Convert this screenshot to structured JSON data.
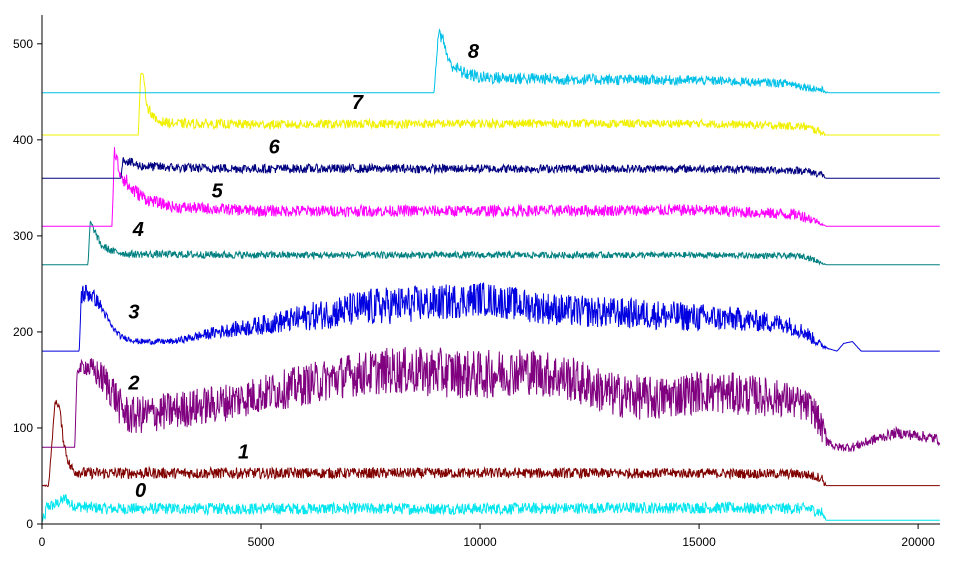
{
  "chart_data": {
    "type": "line",
    "xlim": [
      0,
      20500
    ],
    "ylim": [
      0,
      530
    ],
    "x_ticks": [
      0,
      5000,
      10000,
      15000,
      20000
    ],
    "y_ticks": [
      0,
      100,
      200,
      300,
      400,
      500
    ],
    "x_tick_labels": [
      "0",
      "5000",
      "10000",
      "15000",
      "20000"
    ],
    "y_tick_labels": [
      "0",
      "100",
      "200",
      "300",
      "400",
      "500"
    ],
    "grid": false,
    "legend": "none",
    "series": [
      {
        "name": "0",
        "color": "#00e5ee",
        "points": [
          [
            0,
            5
          ],
          [
            60,
            5
          ],
          [
            100,
            18
          ],
          [
            300,
            20
          ],
          [
            550,
            27
          ],
          [
            650,
            20
          ],
          [
            900,
            18
          ],
          [
            1500,
            16
          ],
          [
            5000,
            16
          ],
          [
            10000,
            16
          ],
          [
            15000,
            17
          ],
          [
            17500,
            16
          ],
          [
            17800,
            12
          ],
          [
            17900,
            4
          ],
          [
            20500,
            4
          ]
        ],
        "noise": [
          [
            0,
            6
          ],
          [
            17800,
            6
          ],
          [
            17900,
            0
          ]
        ],
        "label": {
          "text": "0",
          "x": 2250,
          "y": 28
        }
      },
      {
        "name": "1",
        "color": "#800000",
        "points": [
          [
            0,
            40
          ],
          [
            150,
            40
          ],
          [
            220,
            80
          ],
          [
            300,
            128
          ],
          [
            400,
            122
          ],
          [
            480,
            90
          ],
          [
            560,
            72
          ],
          [
            640,
            60
          ],
          [
            750,
            55
          ],
          [
            1000,
            53
          ],
          [
            5000,
            53
          ],
          [
            10000,
            53
          ],
          [
            15000,
            53
          ],
          [
            17400,
            52
          ],
          [
            17800,
            48
          ],
          [
            17900,
            40
          ],
          [
            20500,
            40
          ]
        ],
        "noise": [
          [
            0,
            0
          ],
          [
            650,
            6
          ],
          [
            17850,
            5
          ],
          [
            17900,
            0
          ]
        ],
        "label": {
          "text": "1",
          "x": 4600,
          "y": 68
        }
      },
      {
        "name": "2",
        "color": "#800080",
        "points": [
          [
            0,
            80
          ],
          [
            750,
            80
          ],
          [
            800,
            160
          ],
          [
            1000,
            165
          ],
          [
            1300,
            155
          ],
          [
            1600,
            140
          ],
          [
            1800,
            120
          ],
          [
            2000,
            112
          ],
          [
            2500,
            115
          ],
          [
            3000,
            118
          ],
          [
            4000,
            125
          ],
          [
            5000,
            135
          ],
          [
            6000,
            145
          ],
          [
            7000,
            155
          ],
          [
            8000,
            160
          ],
          [
            9000,
            158
          ],
          [
            10000,
            155
          ],
          [
            11000,
            160
          ],
          [
            12000,
            152
          ],
          [
            13000,
            135
          ],
          [
            14000,
            130
          ],
          [
            15000,
            138
          ],
          [
            16000,
            135
          ],
          [
            17000,
            130
          ],
          [
            17600,
            120
          ],
          [
            17900,
            90
          ],
          [
            18100,
            80
          ],
          [
            18500,
            80
          ],
          [
            19000,
            88
          ],
          [
            19500,
            95
          ],
          [
            20000,
            92
          ],
          [
            20500,
            88
          ]
        ],
        "noise": [
          [
            0,
            0
          ],
          [
            750,
            0
          ],
          [
            900,
            8
          ],
          [
            1500,
            20
          ],
          [
            5000,
            20
          ],
          [
            9000,
            26
          ],
          [
            16000,
            22
          ],
          [
            17800,
            16
          ],
          [
            18000,
            4
          ],
          [
            18500,
            5
          ],
          [
            20500,
            6
          ]
        ],
        "label": {
          "text": "2",
          "x": 2100,
          "y": 140
        }
      },
      {
        "name": "3",
        "color": "#0000e0",
        "points": [
          [
            0,
            180
          ],
          [
            850,
            180
          ],
          [
            900,
            240
          ],
          [
            1100,
            240
          ],
          [
            1300,
            230
          ],
          [
            1600,
            205
          ],
          [
            1800,
            195
          ],
          [
            2200,
            190
          ],
          [
            3000,
            190
          ],
          [
            3500,
            195
          ],
          [
            4000,
            200
          ],
          [
            5000,
            207
          ],
          [
            6000,
            215
          ],
          [
            7000,
            223
          ],
          [
            8000,
            228
          ],
          [
            9000,
            230
          ],
          [
            10000,
            235
          ],
          [
            11000,
            228
          ],
          [
            12000,
            222
          ],
          [
            13000,
            220
          ],
          [
            14000,
            218
          ],
          [
            15000,
            215
          ],
          [
            16000,
            213
          ],
          [
            17000,
            208
          ],
          [
            17400,
            200
          ],
          [
            17800,
            186
          ],
          [
            18000,
            182
          ],
          [
            18150,
            180
          ],
          [
            18300,
            188
          ],
          [
            18500,
            190
          ],
          [
            18700,
            180
          ],
          [
            20500,
            180
          ]
        ],
        "noise": [
          [
            0,
            0
          ],
          [
            850,
            0
          ],
          [
            900,
            12
          ],
          [
            1600,
            3
          ],
          [
            3000,
            3
          ],
          [
            5000,
            10
          ],
          [
            7500,
            20
          ],
          [
            10000,
            18
          ],
          [
            15000,
            15
          ],
          [
            17500,
            8
          ],
          [
            18000,
            0
          ],
          [
            20500,
            0
          ]
        ],
        "label": {
          "text": "3",
          "x": 2100,
          "y": 214
        }
      },
      {
        "name": "4",
        "color": "#008080",
        "points": [
          [
            0,
            270
          ],
          [
            1050,
            270
          ],
          [
            1100,
            315
          ],
          [
            1200,
            305
          ],
          [
            1350,
            290
          ],
          [
            1600,
            284
          ],
          [
            2000,
            281
          ],
          [
            5000,
            280
          ],
          [
            10000,
            280
          ],
          [
            15000,
            280
          ],
          [
            17400,
            279
          ],
          [
            17800,
            272
          ],
          [
            17900,
            270
          ],
          [
            20500,
            270
          ]
        ],
        "noise": [
          [
            0,
            0
          ],
          [
            1050,
            0
          ],
          [
            1200,
            4
          ],
          [
            17700,
            3
          ],
          [
            17900,
            0
          ]
        ],
        "label": {
          "text": "4",
          "x": 2200,
          "y": 300
        }
      },
      {
        "name": "5",
        "color": "#ff00ff",
        "points": [
          [
            0,
            310
          ],
          [
            1600,
            310
          ],
          [
            1650,
            390
          ],
          [
            1750,
            370
          ],
          [
            2000,
            350
          ],
          [
            2400,
            338
          ],
          [
            3000,
            330
          ],
          [
            5000,
            326
          ],
          [
            10000,
            326
          ],
          [
            15000,
            327
          ],
          [
            17300,
            322
          ],
          [
            17700,
            315
          ],
          [
            17900,
            310
          ],
          [
            20500,
            310
          ]
        ],
        "noise": [
          [
            0,
            0
          ],
          [
            1600,
            0
          ],
          [
            1700,
            10
          ],
          [
            2500,
            6
          ],
          [
            17500,
            6
          ],
          [
            17900,
            0
          ]
        ],
        "label": {
          "text": "5",
          "x": 4000,
          "y": 340
        }
      },
      {
        "name": "6",
        "color": "#000080",
        "points": [
          [
            0,
            360
          ],
          [
            1800,
            360
          ],
          [
            1850,
            380
          ],
          [
            2200,
            373
          ],
          [
            3000,
            371
          ],
          [
            5000,
            370
          ],
          [
            10000,
            370
          ],
          [
            15000,
            370
          ],
          [
            17400,
            368
          ],
          [
            17800,
            364
          ],
          [
            17900,
            360
          ],
          [
            20500,
            360
          ]
        ],
        "noise": [
          [
            0,
            0
          ],
          [
            1800,
            0
          ],
          [
            1900,
            5
          ],
          [
            17800,
            4
          ],
          [
            17900,
            0
          ]
        ],
        "label": {
          "text": "6",
          "x": 5300,
          "y": 386
        }
      },
      {
        "name": "7",
        "color": "#f0f000",
        "points": [
          [
            0,
            405
          ],
          [
            2200,
            405
          ],
          [
            2250,
            468
          ],
          [
            2300,
            470
          ],
          [
            2400,
            435
          ],
          [
            2600,
            420
          ],
          [
            3000,
            417
          ],
          [
            5000,
            416
          ],
          [
            10000,
            417
          ],
          [
            15000,
            417
          ],
          [
            17400,
            414
          ],
          [
            17800,
            408
          ],
          [
            17900,
            405
          ],
          [
            20500,
            405
          ]
        ],
        "noise": [
          [
            0,
            0
          ],
          [
            2250,
            0
          ],
          [
            2400,
            5
          ],
          [
            17800,
            4
          ],
          [
            17900,
            0
          ]
        ],
        "label": {
          "text": "7",
          "x": 7200,
          "y": 432
        }
      },
      {
        "name": "8",
        "color": "#00c0e8",
        "points": [
          [
            0,
            449
          ],
          [
            8950,
            449
          ],
          [
            9050,
            512
          ],
          [
            9150,
            505
          ],
          [
            9300,
            480
          ],
          [
            9600,
            470
          ],
          [
            10000,
            465
          ],
          [
            12000,
            463
          ],
          [
            15000,
            462
          ],
          [
            17000,
            459
          ],
          [
            17800,
            452
          ],
          [
            17950,
            449
          ],
          [
            20500,
            449
          ]
        ],
        "noise": [
          [
            0,
            0
          ],
          [
            8950,
            0
          ],
          [
            9100,
            7
          ],
          [
            17800,
            4
          ],
          [
            17950,
            0
          ]
        ],
        "label": {
          "text": "8",
          "x": 9850,
          "y": 485
        }
      }
    ]
  }
}
